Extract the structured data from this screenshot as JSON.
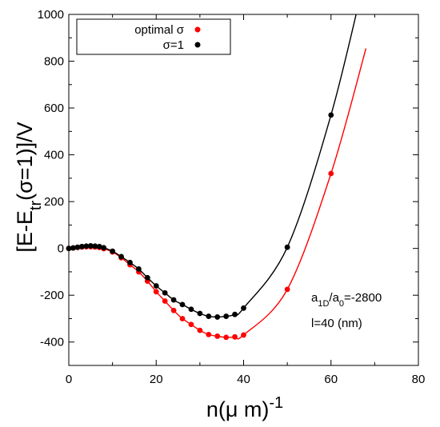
{
  "chart_data": {
    "type": "scatter",
    "xlabel": "n(μ m)-1",
    "ylabel": "[E-Etr(σ=1)]/V",
    "xlim": [
      0,
      80
    ],
    "ylim": [
      -500,
      1000
    ],
    "xticks": [
      0,
      20,
      40,
      60,
      80
    ],
    "yticks": [
      -400,
      -200,
      0,
      200,
      400,
      600,
      800,
      1000
    ],
    "grid": false,
    "legend_position": "top-left",
    "annotations": [
      "a1D/a0=-2800",
      "l=40 (nm)"
    ],
    "series": [
      {
        "name": "optimal σ",
        "color": "#ff0000",
        "points": [
          [
            0,
            0
          ],
          [
            1,
            2
          ],
          [
            2,
            4
          ],
          [
            3,
            6
          ],
          [
            4,
            7
          ],
          [
            5,
            7
          ],
          [
            6,
            6
          ],
          [
            7,
            4
          ],
          [
            8,
            -1
          ],
          [
            10,
            -15
          ],
          [
            12,
            -40
          ],
          [
            14,
            -70
          ],
          [
            16,
            -100
          ],
          [
            18,
            -140
          ],
          [
            20,
            -185
          ],
          [
            22,
            -225
          ],
          [
            24,
            -265
          ],
          [
            26,
            -300
          ],
          [
            28,
            -325
          ],
          [
            30,
            -350
          ],
          [
            32,
            -368
          ],
          [
            34,
            -375
          ],
          [
            36,
            -380
          ],
          [
            38,
            -378
          ],
          [
            40,
            -370
          ],
          [
            50,
            -175
          ],
          [
            60,
            320
          ]
        ]
      },
      {
        "name": "σ=1",
        "color": "#000000",
        "points": [
          [
            0,
            0
          ],
          [
            1,
            2
          ],
          [
            2,
            5
          ],
          [
            3,
            8
          ],
          [
            4,
            10
          ],
          [
            5,
            11
          ],
          [
            6,
            10
          ],
          [
            7,
            8
          ],
          [
            8,
            3
          ],
          [
            10,
            -12
          ],
          [
            12,
            -35
          ],
          [
            14,
            -60
          ],
          [
            16,
            -88
          ],
          [
            18,
            -125
          ],
          [
            20,
            -160
          ],
          [
            22,
            -190
          ],
          [
            24,
            -220
          ],
          [
            26,
            -240
          ],
          [
            28,
            -260
          ],
          [
            30,
            -278
          ],
          [
            32,
            -290
          ],
          [
            34,
            -293
          ],
          [
            36,
            -290
          ],
          [
            38,
            -282
          ],
          [
            40,
            -255
          ],
          [
            50,
            5
          ],
          [
            60,
            570
          ]
        ]
      }
    ]
  }
}
